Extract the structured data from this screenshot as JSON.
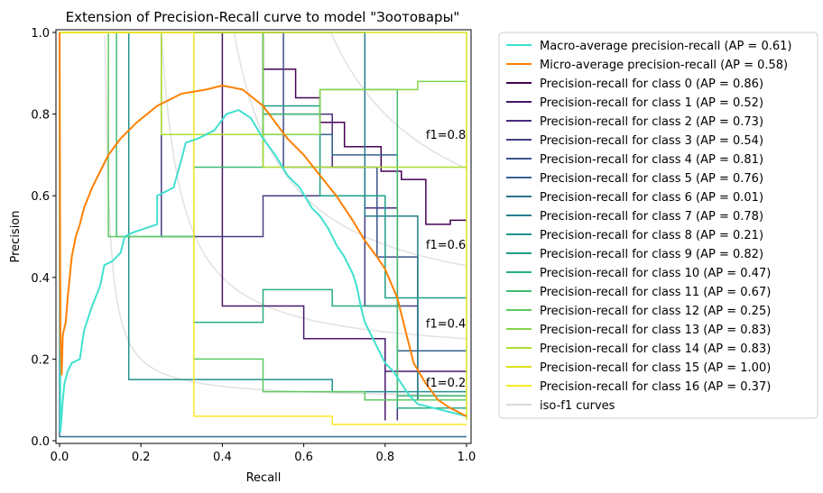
{
  "chart_data": {
    "type": "line",
    "title": "Extension of Precision-Recall curve to model \"Зоотовары\"",
    "xlabel": "Recall",
    "ylabel": "Precision",
    "xlim": [
      0.0,
      1.0
    ],
    "ylim": [
      0.0,
      1.0
    ],
    "xticks": [
      "0.0",
      "0.2",
      "0.4",
      "0.6",
      "0.8",
      "1.0"
    ],
    "yticks": [
      "0.0",
      "0.2",
      "0.4",
      "0.6",
      "0.8",
      "1.0"
    ],
    "legend_position": "outside-right",
    "iso_f1": [
      {
        "f1": 0.2,
        "label": "f1=0.2"
      },
      {
        "f1": 0.4,
        "label": "f1=0.4"
      },
      {
        "f1": 0.6,
        "label": "f1=0.6"
      },
      {
        "f1": 0.8,
        "label": "f1=0.8"
      }
    ],
    "series": [
      {
        "name": "Macro-average precision-recall (AP = 0.61)",
        "color": "#40e0d0",
        "width": 2,
        "points": [
          [
            0,
            1
          ],
          [
            0.002,
            0.02
          ],
          [
            0.005,
            0.06
          ],
          [
            0.008,
            0.1
          ],
          [
            0.012,
            0.14
          ],
          [
            0.02,
            0.17
          ],
          [
            0.03,
            0.19
          ],
          [
            0.05,
            0.2
          ],
          [
            0.06,
            0.27
          ],
          [
            0.08,
            0.33
          ],
          [
            0.1,
            0.38
          ],
          [
            0.11,
            0.43
          ],
          [
            0.13,
            0.44
          ],
          [
            0.15,
            0.46
          ],
          [
            0.16,
            0.5
          ],
          [
            0.18,
            0.51
          ],
          [
            0.24,
            0.53
          ],
          [
            0.24,
            0.6
          ],
          [
            0.28,
            0.62
          ],
          [
            0.3,
            0.69
          ],
          [
            0.31,
            0.73
          ],
          [
            0.34,
            0.74
          ],
          [
            0.36,
            0.75
          ],
          [
            0.38,
            0.76
          ],
          [
            0.41,
            0.8
          ],
          [
            0.44,
            0.81
          ],
          [
            0.47,
            0.79
          ],
          [
            0.5,
            0.74
          ],
          [
            0.53,
            0.7
          ],
          [
            0.56,
            0.65
          ],
          [
            0.59,
            0.62
          ],
          [
            0.62,
            0.57
          ],
          [
            0.64,
            0.55
          ],
          [
            0.66,
            0.52
          ],
          [
            0.68,
            0.48
          ],
          [
            0.7,
            0.45
          ],
          [
            0.72,
            0.41
          ],
          [
            0.73,
            0.38
          ],
          [
            0.74,
            0.33
          ],
          [
            0.75,
            0.29
          ],
          [
            0.76,
            0.27
          ],
          [
            0.78,
            0.23
          ],
          [
            0.8,
            0.19
          ],
          [
            0.82,
            0.17
          ],
          [
            0.84,
            0.14
          ],
          [
            0.86,
            0.11
          ],
          [
            0.88,
            0.09
          ],
          [
            0.92,
            0.08
          ],
          [
            0.96,
            0.07
          ],
          [
            1.0,
            0.06
          ]
        ]
      },
      {
        "name": "Micro-average precision-recall (AP = 0.58)",
        "color": "#ff8000",
        "width": 2,
        "points": [
          [
            0,
            1
          ],
          [
            0.002,
            0.26
          ],
          [
            0.005,
            0.16
          ],
          [
            0.008,
            0.26
          ],
          [
            0.015,
            0.29
          ],
          [
            0.02,
            0.35
          ],
          [
            0.03,
            0.45
          ],
          [
            0.04,
            0.5
          ],
          [
            0.05,
            0.53
          ],
          [
            0.06,
            0.57
          ],
          [
            0.08,
            0.62
          ],
          [
            0.1,
            0.66
          ],
          [
            0.12,
            0.7
          ],
          [
            0.15,
            0.74
          ],
          [
            0.19,
            0.78
          ],
          [
            0.24,
            0.82
          ],
          [
            0.3,
            0.85
          ],
          [
            0.36,
            0.86
          ],
          [
            0.4,
            0.87
          ],
          [
            0.45,
            0.86
          ],
          [
            0.5,
            0.82
          ],
          [
            0.53,
            0.78
          ],
          [
            0.56,
            0.74
          ],
          [
            0.6,
            0.7
          ],
          [
            0.64,
            0.65
          ],
          [
            0.68,
            0.6
          ],
          [
            0.72,
            0.54
          ],
          [
            0.75,
            0.49
          ],
          [
            0.78,
            0.45
          ],
          [
            0.8,
            0.42
          ],
          [
            0.83,
            0.35
          ],
          [
            0.85,
            0.27
          ],
          [
            0.87,
            0.19
          ],
          [
            0.9,
            0.14
          ],
          [
            0.93,
            0.1
          ],
          [
            0.96,
            0.08
          ],
          [
            1.0,
            0.06
          ]
        ]
      },
      {
        "name": "Precision-recall for class 0 (AP = 0.86)",
        "color": "#440154",
        "width": 1.5,
        "points": [
          [
            0,
            1
          ],
          [
            0.5,
            1
          ],
          [
            0.5,
            0.91
          ],
          [
            0.58,
            0.91
          ],
          [
            0.58,
            0.84
          ],
          [
            0.64,
            0.84
          ],
          [
            0.64,
            0.78
          ],
          [
            0.7,
            0.78
          ],
          [
            0.7,
            0.72
          ],
          [
            0.79,
            0.72
          ],
          [
            0.79,
            0.66
          ],
          [
            0.84,
            0.66
          ],
          [
            0.84,
            0.64
          ],
          [
            0.9,
            0.64
          ],
          [
            0.9,
            0.53
          ],
          [
            0.96,
            0.53
          ],
          [
            0.96,
            0.54
          ],
          [
            1.0,
            0.54
          ]
        ]
      },
      {
        "name": "Precision-recall for class 1 (AP = 0.52)",
        "color": "#48186a",
        "width": 1.5,
        "points": [
          [
            0,
            1
          ],
          [
            0.4,
            1
          ],
          [
            0.4,
            0.33
          ],
          [
            0.6,
            0.33
          ],
          [
            0.6,
            0.25
          ],
          [
            0.8,
            0.25
          ],
          [
            0.8,
            0.05
          ],
          [
            0.8,
            0.17
          ],
          [
            1.0,
            0.17
          ]
        ]
      },
      {
        "name": "Precision-recall for class 2 (AP = 0.73)",
        "color": "#472d7b",
        "width": 1.5,
        "points": [
          [
            0,
            1
          ],
          [
            0.5,
            1
          ],
          [
            0.5,
            0.8
          ],
          [
            0.67,
            0.8
          ],
          [
            0.67,
            0.67
          ],
          [
            0.75,
            0.67
          ],
          [
            0.75,
            0.57
          ],
          [
            0.83,
            0.57
          ],
          [
            0.83,
            0.05
          ],
          [
            0.83,
            0.1
          ],
          [
            1.0,
            0.1
          ]
        ]
      },
      {
        "name": "Precision-recall for class 3 (AP = 0.54)",
        "color": "#424086",
        "width": 1.5,
        "points": [
          [
            0,
            1
          ],
          [
            0.25,
            1
          ],
          [
            0.25,
            0.5
          ],
          [
            0.5,
            0.5
          ],
          [
            0.5,
            0.6
          ],
          [
            0.75,
            0.6
          ],
          [
            0.75,
            0.33
          ],
          [
            0.88,
            0.33
          ],
          [
            0.88,
            0.1
          ],
          [
            1.0,
            0.1
          ]
        ]
      },
      {
        "name": "Precision-recall for class 4 (AP = 0.81)",
        "color": "#3b528b",
        "width": 1.5,
        "points": [
          [
            0,
            1
          ],
          [
            0.55,
            1
          ],
          [
            0.55,
            0.67
          ],
          [
            0.78,
            0.67
          ],
          [
            0.78,
            0.45
          ],
          [
            0.88,
            0.45
          ],
          [
            0.88,
            0.22
          ],
          [
            1.0,
            0.22
          ]
        ]
      },
      {
        "name": "Precision-recall for class 5 (AP = 0.76)",
        "color": "#33638d",
        "width": 1.5,
        "points": [
          [
            0,
            1
          ],
          [
            0.5,
            1
          ],
          [
            0.5,
            0.75
          ],
          [
            0.67,
            0.75
          ],
          [
            0.67,
            0.7
          ],
          [
            0.83,
            0.7
          ],
          [
            0.83,
            0.22
          ],
          [
            1.0,
            0.22
          ]
        ]
      },
      {
        "name": "Precision-recall for class 6 (AP = 0.01)",
        "color": "#2c728e",
        "width": 1.5,
        "points": [
          [
            0,
            1
          ],
          [
            0,
            0.01
          ],
          [
            1.0,
            0.01
          ]
        ]
      },
      {
        "name": "Precision-recall for class 7 (AP = 0.78)",
        "color": "#287d8e",
        "width": 1.5,
        "points": [
          [
            0,
            1
          ],
          [
            0.75,
            1
          ],
          [
            0.75,
            0.55
          ],
          [
            0.88,
            0.55
          ],
          [
            0.88,
            0.1
          ],
          [
            1.0,
            0.1
          ]
        ]
      },
      {
        "name": "Precision-recall for class 8 (AP = 0.21)",
        "color": "#21918c",
        "width": 1.5,
        "points": [
          [
            0,
            1
          ],
          [
            0.17,
            1
          ],
          [
            0.17,
            0.15
          ],
          [
            0.67,
            0.15
          ],
          [
            0.67,
            0.12
          ],
          [
            1.0,
            0.12
          ]
        ]
      },
      {
        "name": "Precision-recall for class 9 (AP = 0.82)",
        "color": "#1fa088",
        "width": 1.5,
        "points": [
          [
            0,
            1
          ],
          [
            0.5,
            1
          ],
          [
            0.5,
            0.82
          ],
          [
            0.64,
            0.82
          ],
          [
            0.64,
            0.6
          ],
          [
            0.8,
            0.6
          ],
          [
            0.8,
            0.35
          ],
          [
            1.0,
            0.35
          ]
        ]
      },
      {
        "name": "Precision-recall for class 10 (AP = 0.47)",
        "color": "#28ae80",
        "width": 1.5,
        "points": [
          [
            0,
            1
          ],
          [
            0.33,
            1
          ],
          [
            0.33,
            0.29
          ],
          [
            0.5,
            0.29
          ],
          [
            0.5,
            0.37
          ],
          [
            0.67,
            0.37
          ],
          [
            0.67,
            0.33
          ],
          [
            0.83,
            0.33
          ],
          [
            0.83,
            0.08
          ],
          [
            1.0,
            0.08
          ]
        ]
      },
      {
        "name": "Precision-recall for class 11 (AP = 0.67)",
        "color": "#3fbc73",
        "width": 1.5,
        "points": [
          [
            0,
            1
          ],
          [
            0.14,
            1
          ],
          [
            0.14,
            0.5
          ],
          [
            0.33,
            0.5
          ],
          [
            0.33,
            0.67
          ],
          [
            0.5,
            0.67
          ],
          [
            0.5,
            0.8
          ],
          [
            0.64,
            0.8
          ],
          [
            0.64,
            0.86
          ],
          [
            0.83,
            0.86
          ],
          [
            0.83,
            0.11
          ],
          [
            1.0,
            0.11
          ]
        ]
      },
      {
        "name": "Precision-recall for class 12 (AP = 0.25)",
        "color": "#5ec962",
        "width": 1.5,
        "points": [
          [
            0,
            1
          ],
          [
            0.12,
            1
          ],
          [
            0.12,
            0.5
          ],
          [
            0.33,
            0.5
          ],
          [
            0.33,
            0.2
          ],
          [
            0.5,
            0.2
          ],
          [
            0.5,
            0.12
          ],
          [
            0.75,
            0.12
          ],
          [
            0.75,
            0.1
          ],
          [
            1.0,
            0.1
          ]
        ]
      },
      {
        "name": "Precision-recall for class 13 (AP = 0.83)",
        "color": "#84d44b",
        "width": 1.5,
        "points": [
          [
            0,
            1
          ],
          [
            0.5,
            1
          ],
          [
            0.5,
            0.75
          ],
          [
            0.64,
            0.75
          ],
          [
            0.64,
            0.86
          ],
          [
            0.88,
            0.86
          ],
          [
            0.88,
            0.88
          ],
          [
            1.0,
            0.88
          ]
        ]
      },
      {
        "name": "Precision-recall for class 14 (AP = 0.83)",
        "color": "#addc30",
        "width": 1.5,
        "points": [
          [
            0,
            1
          ],
          [
            0.25,
            1
          ],
          [
            0.25,
            0.75
          ],
          [
            0.5,
            0.75
          ],
          [
            0.5,
            0.67
          ],
          [
            0.75,
            0.67
          ],
          [
            0.75,
            0.67
          ],
          [
            1.0,
            0.67
          ]
        ]
      },
      {
        "name": "Precision-recall for class 15 (AP = 1.00)",
        "color": "#d8e219",
        "width": 1.5,
        "points": [
          [
            0,
            1
          ],
          [
            1.0,
            1
          ],
          [
            1.0,
            0.05
          ]
        ]
      },
      {
        "name": "Precision-recall for class 16 (AP = 0.37)",
        "color": "#fde725",
        "width": 1.5,
        "points": [
          [
            0,
            1
          ],
          [
            0.33,
            1
          ],
          [
            0.33,
            0.06
          ],
          [
            0.67,
            0.06
          ],
          [
            0.67,
            0.04
          ],
          [
            1.0,
            0.04
          ]
        ]
      },
      {
        "name": "iso-f1 curves",
        "color": "#d9d9d9",
        "width": 1.5,
        "points": []
      }
    ]
  }
}
